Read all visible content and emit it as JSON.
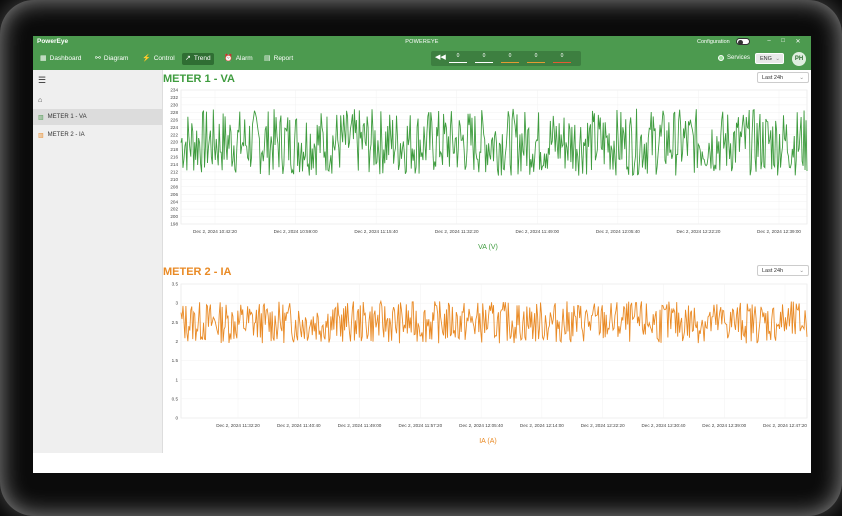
{
  "titlebar": {
    "logo": "PowerEye",
    "app_title": "POWEREYE",
    "config_label": "Configuration",
    "minimize": "–",
    "maximize": "□",
    "close": "✕"
  },
  "navbar": {
    "items": [
      {
        "label": "Dashboard",
        "icon": "dashboard-icon",
        "glyph": "▦"
      },
      {
        "label": "Diagram",
        "icon": "diagram-icon",
        "glyph": "⚯"
      },
      {
        "label": "Control",
        "icon": "control-icon",
        "glyph": "⚡"
      },
      {
        "label": "Trend",
        "icon": "trend-icon",
        "glyph": "↗"
      },
      {
        "label": "Alarm",
        "icon": "alarm-icon",
        "glyph": "⏰"
      },
      {
        "label": "Report",
        "icon": "report-icon",
        "glyph": "▤"
      }
    ],
    "active": "Trend",
    "meter_values": [
      "0",
      "0",
      "0",
      "0",
      "0"
    ],
    "meter_colors": [
      "#ffffff",
      "#ffffff",
      "#e39a33",
      "#e39a33",
      "#e35c33"
    ],
    "services_label": "Services",
    "language": "ENG",
    "avatar": "PH"
  },
  "sidebar": {
    "items": [
      {
        "label": "",
        "icon": "home-icon"
      },
      {
        "label": "METER 1 - VA",
        "icon": "meter-icon"
      },
      {
        "label": "METER 2 - IA",
        "icon": "meter-icon"
      }
    ]
  },
  "colors": {
    "green": "#3f9c3f",
    "orange": "#e98a25",
    "nav": "#4c9a4f"
  },
  "charts": {
    "c1": {
      "title": "METER 1 - VA",
      "range": "Last 24h"
    },
    "c2": {
      "title": "METER 2 - IA",
      "range": "Last 24h"
    }
  },
  "chart_data": [
    {
      "type": "line",
      "title": "METER 1 - VA",
      "xlabel": "VA (V)",
      "ylabel": "",
      "ylim": [
        198,
        234
      ],
      "yticks": [
        198,
        200,
        202,
        204,
        206,
        208,
        210,
        212,
        214,
        216,
        218,
        220,
        222,
        224,
        226,
        228,
        230,
        232,
        234
      ],
      "xticks": [
        "Dec 2, 2024 10:42:20",
        "Dec 2, 2024 10:59:00",
        "Dec 2, 2024 11:15:40",
        "Dec 2, 2024 11:32:20",
        "Dec 2, 2024 11:49:00",
        "Dec 2, 2024 12:05:40",
        "Dec 2, 2024 12:22:20",
        "Dec 2, 2024 12:39:00"
      ],
      "series": [
        {
          "name": "VA",
          "color": "#3f9c3f",
          "min": 211,
          "max": 229,
          "samples": 640,
          "seed": 7
        }
      ]
    },
    {
      "type": "line",
      "title": "METER 2 - IA",
      "xlabel": "IA (A)",
      "ylabel": "",
      "ylim": [
        0,
        3.5
      ],
      "yticks": [
        0,
        0.5,
        1,
        1.5,
        2,
        2.5,
        3,
        3.5
      ],
      "ytick_labels": [
        "0",
        "0.5",
        "1",
        "1.5",
        "2",
        "2.5",
        "3",
        "3.5"
      ],
      "xticks": [
        "Dec 2, 2024 11:32:20",
        "Dec 2, 2024 11:40:40",
        "Dec 2, 2024 11:49:00",
        "Dec 2, 2024 11:57:20",
        "Dec 2, 2024 12:05:40",
        "Dec 2, 2024 12:14:00",
        "Dec 2, 2024 12:22:20",
        "Dec 2, 2024 12:30:40",
        "Dec 2, 2024 12:39:00",
        "Dec 2, 2024 12:47:20"
      ],
      "series": [
        {
          "name": "IA",
          "color": "#e98a25",
          "min": 1.95,
          "max": 3.05,
          "samples": 640,
          "seed": 13
        }
      ]
    }
  ]
}
